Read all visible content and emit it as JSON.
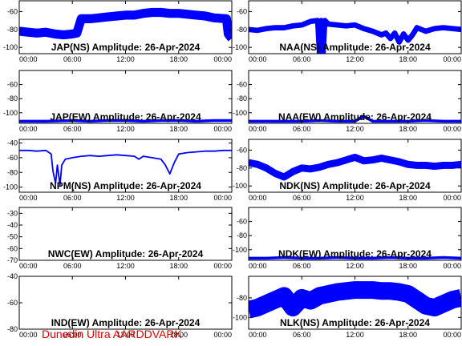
{
  "footer": "Dunedin Ultra AARDDVARK",
  "colors": {
    "trace": "#0000ff",
    "frame": "#000000",
    "footer": "#e00000",
    "background": "#ffffff"
  },
  "chart_data": [
    {
      "type": "line",
      "title": "JAP(NS) Amplitude: 26-Apr-2024",
      "x_ticks": [
        "00:00",
        "06:00",
        "12:00",
        "18:00",
        "00:00"
      ],
      "xlim": [
        0,
        24
      ],
      "y_ticks": [
        -100,
        -80,
        -60
      ],
      "ylim": [
        -107,
        -48
      ],
      "series": [
        {
          "x": [
            0,
            1,
            2,
            3,
            4,
            5,
            6,
            6.5,
            7,
            8,
            9,
            10,
            11,
            12,
            13,
            14,
            15,
            16,
            17,
            18,
            19,
            20,
            21,
            22,
            23.4,
            23.6,
            24
          ],
          "values": [
            -82,
            -83,
            -84,
            -83,
            -85,
            -86,
            -85,
            -84,
            -68,
            -68,
            -67,
            -66,
            -65,
            -64,
            -64,
            -62,
            -61,
            -61,
            -62,
            -62,
            -63,
            -64,
            -65,
            -67,
            -68,
            -85,
            -90
          ],
          "band": 5
        }
      ]
    },
    {
      "type": "line",
      "title": "NAA(NS) Amplitude: 26-Apr-2024",
      "x_ticks": [
        "00:00",
        "06:00",
        "12:00",
        "18:00",
        "00:00"
      ],
      "xlim": [
        0,
        24
      ],
      "y_ticks": [
        -100,
        -80,
        -60
      ],
      "ylim": [
        -107,
        -48
      ],
      "series": [
        {
          "x": [
            0,
            1,
            2,
            3,
            4,
            5,
            6,
            7,
            7.8,
            8,
            8.2,
            8.4,
            8.6,
            9,
            10,
            11,
            12,
            13,
            14,
            15,
            15.5,
            16,
            16.5,
            17,
            17.5,
            18,
            18.5,
            19,
            19.5,
            20,
            21,
            22,
            23,
            24
          ],
          "values": [
            -80,
            -81,
            -79,
            -78,
            -78,
            -76,
            -75,
            -71,
            -70,
            -107,
            -70,
            -107,
            -70,
            -74,
            -75,
            -76,
            -75,
            -79,
            -82,
            -86,
            -84,
            -90,
            -84,
            -94,
            -85,
            -92,
            -86,
            -78,
            -80,
            -82,
            -79,
            -78,
            -79,
            -80
          ],
          "band": 3
        }
      ]
    },
    {
      "type": "line",
      "title": "JAP(EW) Amplitude: 26-Apr-2024",
      "x_ticks": [
        "00:00",
        "06:00",
        "12:00",
        "18:00",
        "00:00"
      ],
      "xlim": [
        0,
        24
      ],
      "y_ticks": [
        -100,
        -80,
        -60
      ],
      "ylim": [
        -115,
        -40
      ],
      "series": [
        {
          "x": [
            0,
            3,
            6,
            8,
            10,
            12,
            14,
            16,
            18,
            20,
            22,
            24
          ],
          "values": [
            -112,
            -112,
            -111,
            -112,
            -111,
            -111,
            -112,
            -111,
            -111,
            -112,
            -111,
            -111
          ],
          "band": 2
        }
      ]
    },
    {
      "type": "line",
      "title": "NAA(EW) Amplitude: 26-Apr-2024",
      "x_ticks": [
        "00:00",
        "06:00",
        "12:00",
        "18:00",
        "00:00"
      ],
      "xlim": [
        0,
        24
      ],
      "y_ticks": [
        -100,
        -80,
        -60
      ],
      "ylim": [
        -115,
        -40
      ],
      "series": [
        {
          "x": [
            0,
            3,
            6,
            8,
            10,
            12,
            13,
            14,
            16,
            18,
            20,
            22,
            24
          ],
          "values": [
            -112,
            -112,
            -112,
            -111,
            -112,
            -112,
            -105,
            -112,
            -112,
            -112,
            -111,
            -112,
            -112
          ],
          "band": 2
        }
      ]
    },
    {
      "type": "line",
      "title": "NPM(NS) Amplitude: 26-Apr-2024",
      "x_ticks": [
        "00:00",
        "06:00",
        "12:00",
        "18:00",
        "00:00"
      ],
      "xlim": [
        0,
        24
      ],
      "y_ticks": [
        -100,
        -80,
        -60,
        -40
      ],
      "ylim": [
        -107,
        -35
      ],
      "series": [
        {
          "x": [
            0,
            1,
            2,
            3,
            3.6,
            3.8,
            4.1,
            4.3,
            4.6,
            4.8,
            5.2,
            6,
            7,
            8,
            9,
            10,
            11,
            12,
            13,
            13.5,
            14,
            15,
            16,
            16.5,
            17,
            17.5,
            18,
            19,
            20,
            21,
            22,
            23,
            24
          ],
          "values": [
            -50,
            -50,
            -51,
            -50,
            -55,
            -78,
            -95,
            -70,
            -97,
            -70,
            -62,
            -60,
            -58,
            -57,
            -58,
            -57,
            -56,
            -57,
            -58,
            -62,
            -58,
            -60,
            -62,
            -70,
            -82,
            -67,
            -55,
            -53,
            -52,
            -51,
            -51,
            -50,
            -50
          ],
          "band": 1
        }
      ]
    },
    {
      "type": "line",
      "title": "NDK(NS) Amplitude: 26-Apr-2024",
      "x_ticks": [
        "00:00",
        "06:00",
        "12:00",
        "18:00",
        "00:00"
      ],
      "xlim": [
        0,
        24
      ],
      "y_ticks": [
        -100,
        -80,
        -60
      ],
      "ylim": [
        -107,
        -48
      ],
      "series": [
        {
          "x": [
            0,
            1,
            2,
            3,
            4,
            5,
            6,
            7,
            8,
            9,
            10,
            11,
            12,
            13,
            14,
            15,
            16,
            17,
            18,
            19,
            20,
            21,
            22,
            23,
            24
          ],
          "values": [
            -74,
            -76,
            -80,
            -86,
            -90,
            -84,
            -80,
            -81,
            -79,
            -76,
            -74,
            -71,
            -68,
            -72,
            -71,
            -69,
            -71,
            -73,
            -76,
            -77,
            -77,
            -78,
            -77,
            -77,
            -76
          ],
          "band": 4
        }
      ]
    },
    {
      "type": "line",
      "title": "NWC(EW) Amplitude: 26-Apr-2024",
      "x_ticks": [
        "00:00",
        "06:00",
        "12:00",
        "18:00",
        "00:00"
      ],
      "xlim": [
        0,
        24
      ],
      "y_ticks": [
        -70,
        -60,
        -50,
        -40,
        -30
      ],
      "ylim": [
        -70,
        -25
      ],
      "series": []
    },
    {
      "type": "line",
      "title": "NDK(EW) Amplitude: 26-Apr-2024",
      "x_ticks": [
        "00:00",
        "06:00",
        "12:00",
        "18:00",
        "00:00"
      ],
      "xlim": [
        0,
        24
      ],
      "y_ticks": [
        -100,
        -80,
        -60
      ],
      "ylim": [
        -115,
        -40
      ],
      "series": [
        {
          "x": [
            0,
            2,
            4,
            6,
            8,
            10,
            12,
            14,
            16,
            18,
            20,
            22,
            24
          ],
          "values": [
            -112,
            -112,
            -111,
            -112,
            -112,
            -111,
            -112,
            -112,
            -111,
            -112,
            -112,
            -111,
            -112
          ],
          "band": 2
        }
      ]
    },
    {
      "type": "line",
      "title": "IND(EW) Amplitude: 26-Apr-2024",
      "x_ticks": [
        "00:00",
        "06:00",
        "12:00",
        "18:00",
        "00:00"
      ],
      "xlim": [
        0,
        24
      ],
      "y_ticks": [
        -80,
        -60,
        -40
      ],
      "ylim": [
        -80,
        -40
      ],
      "series": []
    },
    {
      "type": "line",
      "title": "NLK(NS) Amplitude: 26-Apr-2024",
      "x_ticks": [
        "00:00",
        "06:00",
        "12:00",
        "18:00",
        "00:00"
      ],
      "xlim": [
        0,
        24
      ],
      "y_ticks": [
        -100,
        -80
      ],
      "ylim": [
        -112,
        -58
      ],
      "series": [
        {
          "x": [
            0,
            1,
            2,
            3,
            4,
            5,
            6,
            7,
            8,
            9,
            10,
            11,
            12,
            13,
            14,
            15,
            16,
            17,
            18,
            19,
            20,
            21,
            22,
            23,
            24
          ],
          "values": [
            -92,
            -90,
            -86,
            -82,
            -78,
            -90,
            -80,
            -83,
            -78,
            -76,
            -74,
            -73,
            -72,
            -72,
            -72,
            -73,
            -73,
            -74,
            -76,
            -82,
            -88,
            -90,
            -86,
            -82,
            -80
          ],
          "band": 9
        }
      ]
    }
  ]
}
